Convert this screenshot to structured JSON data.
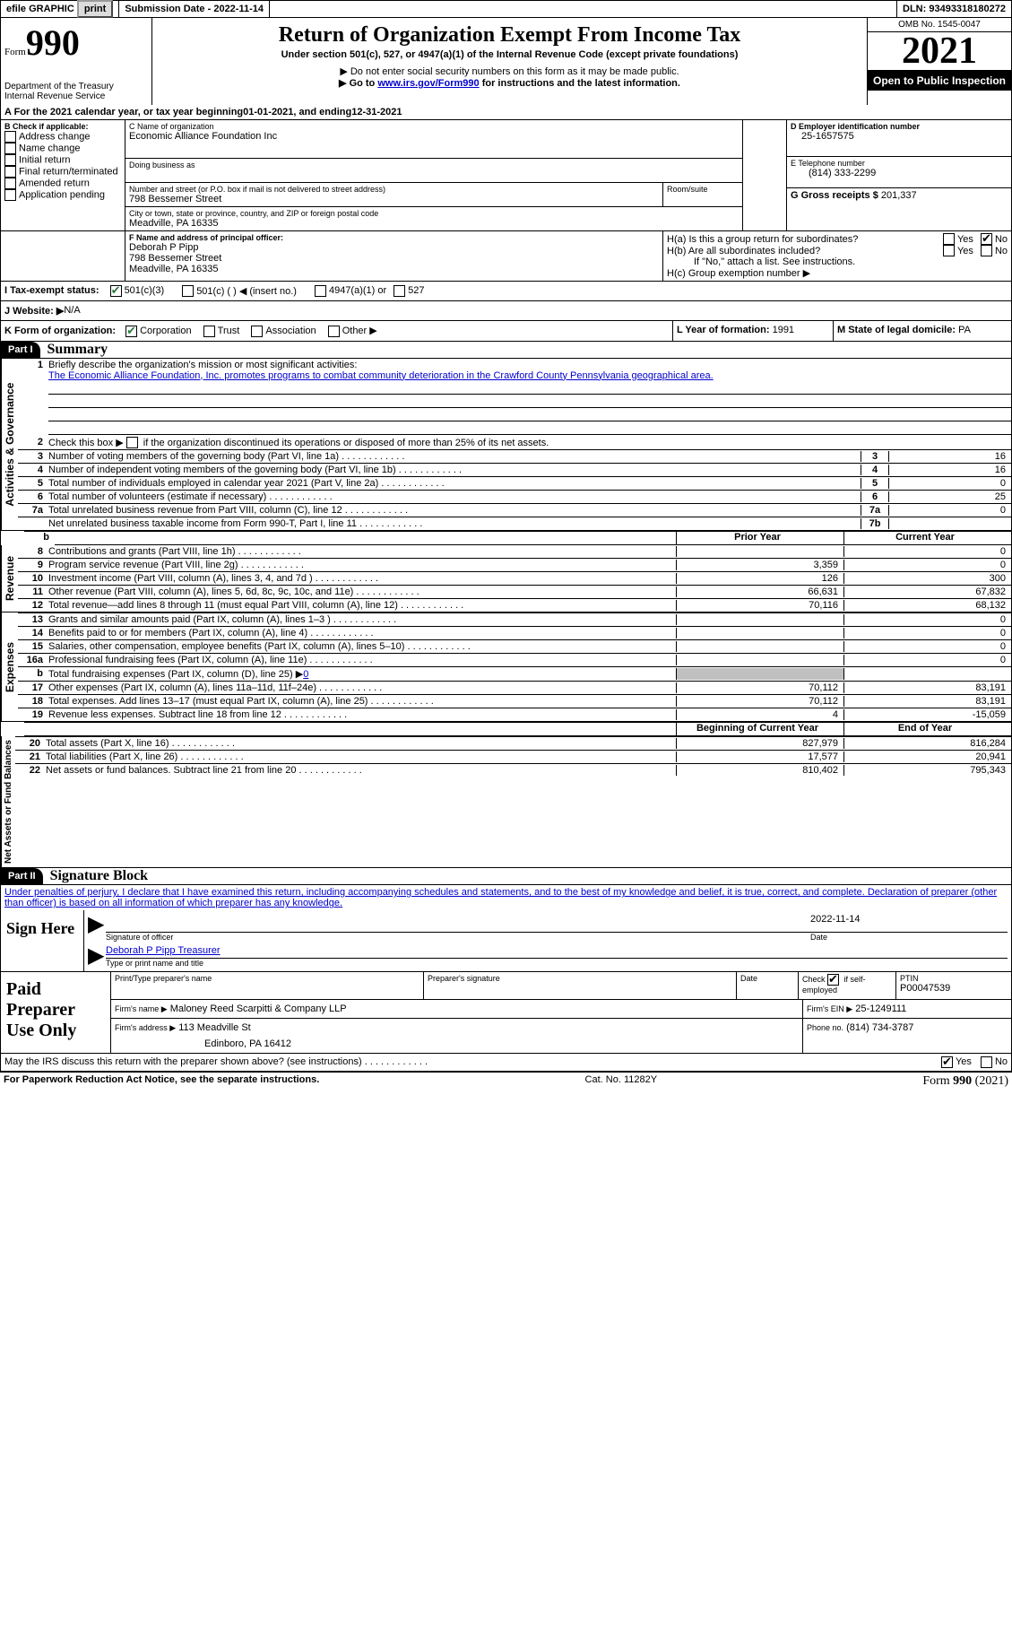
{
  "topbar": {
    "efile_label": "efile GRAPHIC",
    "print_label": "print",
    "submission_label": "Submission Date - 2022-11-14",
    "dln_label": "DLN: 93493318180272"
  },
  "header": {
    "form_small": "Form",
    "form_big": "990",
    "dept": "Department of the Treasury",
    "irs": "Internal Revenue Service",
    "title": "Return of Organization Exempt From Income Tax",
    "sub": "Under section 501(c), 527, or 4947(a)(1) of the Internal Revenue Code (except private foundations)",
    "note1": "▶ Do not enter social security numbers on this form as it may be made public.",
    "note2_pre": "▶ Go to ",
    "note2_link": "www.irs.gov/Form990",
    "note2_post": " for instructions and the latest information.",
    "omb": "OMB No. 1545-0047",
    "year": "2021",
    "inspect": "Open to Public Inspection"
  },
  "period": {
    "text_a": "A For the 2021 calendar year, or tax year beginning ",
    "begin": "01-01-2021",
    "text_b": " , and ending ",
    "end": "12-31-2021"
  },
  "boxB": {
    "title": "B Check if applicable:",
    "opts": [
      "Address change",
      "Name change",
      "Initial return",
      "Final return/terminated",
      "Amended return",
      "Application pending"
    ]
  },
  "boxC": {
    "label_name": "C Name of organization",
    "org_name": "Economic Alliance Foundation Inc",
    "dba_label": "Doing business as",
    "addr_label": "Number and street (or P.O. box if mail is not delivered to street address)",
    "room_label": "Room/suite",
    "addr": "798 Bessemer Street",
    "city_label": "City or town, state or province, country, and ZIP or foreign postal code",
    "city": "Meadville, PA  16335"
  },
  "boxD": {
    "label": "D Employer identification number",
    "val": "25-1657575"
  },
  "boxE": {
    "label": "E Telephone number",
    "val": "(814) 333-2299"
  },
  "boxG": {
    "label": "G Gross receipts $",
    "val": "201,337"
  },
  "boxF": {
    "label": "F  Name and address of principal officer:",
    "name": "Deborah P Pipp",
    "addr1": "798 Bessemer Street",
    "addr2": "Meadville, PA  16335"
  },
  "boxH": {
    "ha_label": "H(a)  Is this a group return for subordinates?",
    "hb_label": "H(b)  Are all subordinates included?",
    "hb_note": "If \"No,\" attach a list. See instructions.",
    "hc_label": "H(c)  Group exemption number ▶",
    "yes": "Yes",
    "no": "No"
  },
  "rowI": {
    "label": "I    Tax-exempt status:",
    "o1": "501(c)(3)",
    "o2": "501(c) (  ) ◀ (insert no.)",
    "o3": "4947(a)(1) or",
    "o4": "527"
  },
  "rowJ": {
    "label": "J   Website: ▶",
    "val": "  N/A"
  },
  "rowK": {
    "label": "K Form of organization:",
    "o1": "Corporation",
    "o2": "Trust",
    "o3": "Association",
    "o4": "Other ▶"
  },
  "rowL": {
    "label": "L Year of formation:",
    "val": "1991"
  },
  "rowM": {
    "label": "M State of legal domicile:",
    "val": "PA"
  },
  "part1": {
    "tag": "Part I",
    "title": "Summary"
  },
  "sections": {
    "activities": "Activities & Governance",
    "revenue": "Revenue",
    "expenses": "Expenses",
    "netassets": "Net Assets or Fund Balances"
  },
  "line1": {
    "label": "Briefly describe the organization's mission or most significant activities:",
    "text": "The Economic Alliance Foundation, Inc. promotes programs to combat community deterioration in the Crawford County Pennsylvania geographical area."
  },
  "line2": {
    "label": "Check this box ▶",
    "text": "if the organization discontinued its operations or disposed of more than 25% of its net assets."
  },
  "lines_gov": [
    {
      "n": "3",
      "t": "Number of voting members of the governing body (Part VI, line 1a)",
      "box": "3",
      "v": "16"
    },
    {
      "n": "4",
      "t": "Number of independent voting members of the governing body (Part VI, line 1b)",
      "box": "4",
      "v": "16"
    },
    {
      "n": "5",
      "t": "Total number of individuals employed in calendar year 2021 (Part V, line 2a)",
      "box": "5",
      "v": "0"
    },
    {
      "n": "6",
      "t": "Total number of volunteers (estimate if necessary)",
      "box": "6",
      "v": "25"
    },
    {
      "n": "7a",
      "t": "Total unrelated business revenue from Part VIII, column (C), line 12",
      "box": "7a",
      "v": "0"
    },
    {
      "n": "",
      "t": "Net unrelated business taxable income from Form 990-T, Part I, line 11",
      "box": "7b",
      "v": ""
    }
  ],
  "col_prior": "Prior Year",
  "col_current": "Current Year",
  "lines_rev": [
    {
      "n": "8",
      "t": "Contributions and grants (Part VIII, line 1h)",
      "p": "",
      "c": "0"
    },
    {
      "n": "9",
      "t": "Program service revenue (Part VIII, line 2g)",
      "p": "3,359",
      "c": "0"
    },
    {
      "n": "10",
      "t": "Investment income (Part VIII, column (A), lines 3, 4, and 7d )",
      "p": "126",
      "c": "300"
    },
    {
      "n": "11",
      "t": "Other revenue (Part VIII, column (A), lines 5, 6d, 8c, 9c, 10c, and 11e)",
      "p": "66,631",
      "c": "67,832"
    },
    {
      "n": "12",
      "t": "Total revenue—add lines 8 through 11 (must equal Part VIII, column (A), line 12)",
      "p": "70,116",
      "c": "68,132"
    }
  ],
  "lines_exp": [
    {
      "n": "13",
      "t": "Grants and similar amounts paid (Part IX, column (A), lines 1–3 )",
      "p": "",
      "c": "0"
    },
    {
      "n": "14",
      "t": "Benefits paid to or for members (Part IX, column (A), line 4)",
      "p": "",
      "c": "0"
    },
    {
      "n": "15",
      "t": "Salaries, other compensation, employee benefits (Part IX, column (A), lines 5–10)",
      "p": "",
      "c": "0"
    },
    {
      "n": "16a",
      "t": "Professional fundraising fees (Part IX, column (A), line 11e)",
      "p": "",
      "c": "0"
    }
  ],
  "line16b": {
    "n": "b",
    "t": "Total fundraising expenses (Part IX, column (D), line 25) ▶",
    "v": "0"
  },
  "lines_exp2": [
    {
      "n": "17",
      "t": "Other expenses (Part IX, column (A), lines 11a–11d, 11f–24e)",
      "p": "70,112",
      "c": "83,191"
    },
    {
      "n": "18",
      "t": "Total expenses. Add lines 13–17 (must equal Part IX, column (A), line 25)",
      "p": "70,112",
      "c": "83,191"
    },
    {
      "n": "19",
      "t": "Revenue less expenses. Subtract line 18 from line 12",
      "p": "4",
      "c": "-15,059"
    }
  ],
  "col_begin": "Beginning of Current Year",
  "col_end": "End of Year",
  "lines_net": [
    {
      "n": "20",
      "t": "Total assets (Part X, line 16)",
      "p": "827,979",
      "c": "816,284"
    },
    {
      "n": "21",
      "t": "Total liabilities (Part X, line 26)",
      "p": "17,577",
      "c": "20,941"
    },
    {
      "n": "22",
      "t": "Net assets or fund balances. Subtract line 21 from line 20",
      "p": "810,402",
      "c": "795,343"
    }
  ],
  "part2": {
    "tag": "Part II",
    "title": "Signature Block"
  },
  "penalties": "Under penalties of perjury, I declare that I have examined this return, including accompanying schedules and statements, and to the best of my knowledge and belief, it is true, correct, and complete. Declaration of preparer (other than officer) is based on all information of which preparer has any knowledge.",
  "sign": {
    "here": "Sign Here",
    "sig_label": "Signature of officer",
    "date_label": "Date",
    "date_val": "2022-11-14",
    "name_val": "Deborah P Pipp  Treasurer",
    "name_label": "Type or print name and title"
  },
  "paid": {
    "title": "Paid Preparer Use Only",
    "print_label": "Print/Type preparer's name",
    "sig_label": "Preparer's signature",
    "date_label": "Date",
    "check_label": "Check",
    "if_label": "if self-employed",
    "ptin_label": "PTIN",
    "ptin_val": "P00047539",
    "firm_name_label": "Firm's name    ▶",
    "firm_name": "Maloney Reed Scarpitti & Company LLP",
    "firm_ein_label": "Firm's EIN ▶",
    "firm_ein": "25-1249111",
    "firm_addr_label": "Firm's address ▶",
    "firm_addr1": "113 Meadville St",
    "firm_addr2": "Edinboro, PA  16412",
    "phone_label": "Phone no.",
    "phone": "(814) 734-3787"
  },
  "discuss": {
    "text": "May the IRS discuss this return with the preparer shown above? (see instructions)",
    "yes": "Yes",
    "no": "No"
  },
  "footer": {
    "left": "For Paperwork Reduction Act Notice, see the separate instructions.",
    "mid": "Cat. No. 11282Y",
    "right": "Form 990 (2021)"
  },
  "b_label": "b"
}
